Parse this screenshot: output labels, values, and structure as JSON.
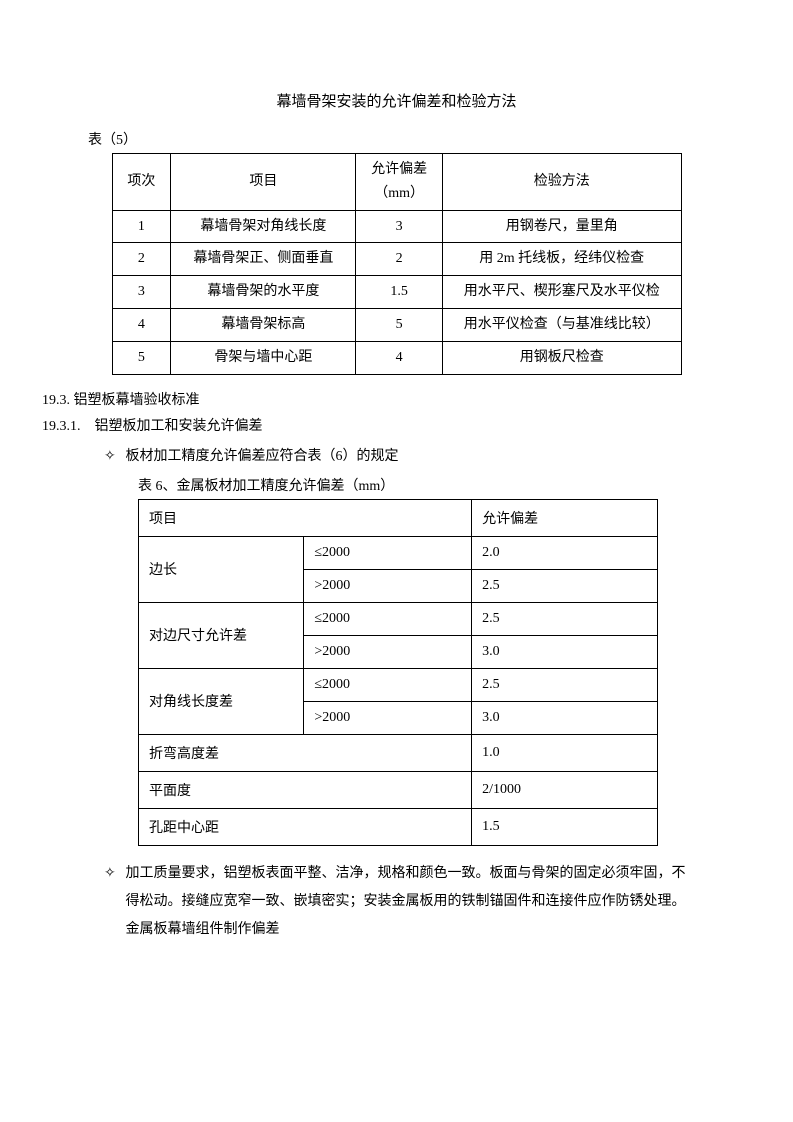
{
  "title": "幕墙骨架安装的允许偏差和检验方法",
  "table5": {
    "label": "表（5）",
    "header": {
      "idx": "项次",
      "item": "项目",
      "tol": "允许偏差（mm）",
      "method": "检验方法"
    },
    "rows": [
      {
        "idx": "1",
        "item": "幕墙骨架对角线长度",
        "tol": "3",
        "method": "用钢卷尺，量里角"
      },
      {
        "idx": "2",
        "item": "幕墙骨架正、侧面垂直",
        "tol": "2",
        "method": "用 2m 托线板，经纬仪检查"
      },
      {
        "idx": "3",
        "item": "幕墙骨架的水平度",
        "tol": "1.5",
        "method": "用水平尺、楔形塞尺及水平仪检"
      },
      {
        "idx": "4",
        "item": "幕墙骨架标高",
        "tol": "5",
        "method": "用水平仪检查（与基准线比较）"
      },
      {
        "idx": "5",
        "item": "骨架与墙中心距",
        "tol": "4",
        "method": "用钢板尺检查"
      }
    ]
  },
  "sec193": "19.3. 铝塑板幕墙验收标准",
  "sec1931": "19.3.1.　铝塑板加工和安装允许偏差",
  "bullet1": "板材加工精度允许偏差应符合表（6）的规定",
  "table6": {
    "label": "表 6、金属板材加工精度允许偏差（mm）",
    "header": {
      "item": "项目",
      "tol": "允许偏差"
    },
    "rows": [
      {
        "item": "边长",
        "sub": "≤2000",
        "tol": "2.0"
      },
      {
        "item": "",
        "sub": ">2000",
        "tol": "2.5"
      },
      {
        "item": "对边尺寸允许差",
        "sub": "≤2000",
        "tol": "2.5"
      },
      {
        "item": "",
        "sub": ">2000",
        "tol": "3.0"
      },
      {
        "item": "对角线长度差",
        "sub": "≤2000",
        "tol": "2.5"
      },
      {
        "item": "",
        "sub": ">2000",
        "tol": "3.0"
      },
      {
        "item": "折弯高度差",
        "sub": "",
        "tol": "1.0",
        "span": true
      },
      {
        "item": "平面度",
        "sub": "",
        "tol": "2/1000",
        "span": true
      },
      {
        "item": "孔距中心距",
        "sub": "",
        "tol": "1.5",
        "span": true
      }
    ]
  },
  "bullet2": "加工质量要求，铝塑板表面平整、洁净，规格和颜色一致。板面与骨架的固定必须牢固，不得松动。接缝应宽窄一致、嵌填密实；安装金属板用的铁制锚固件和连接件应作防锈处理。金属板幕墙组件制作偏差",
  "diamond": "✧"
}
